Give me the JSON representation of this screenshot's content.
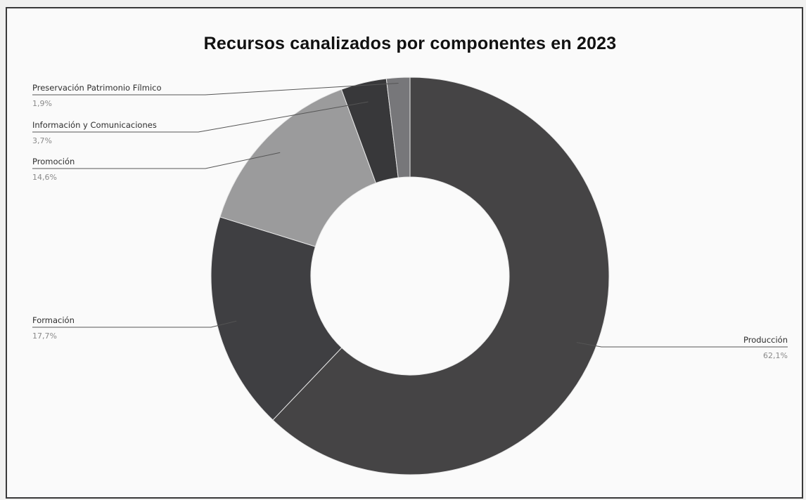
{
  "chart_data": {
    "type": "pie",
    "donut": true,
    "title": "Recursos canalizados por componentes en 2023",
    "slices": [
      {
        "label": "Producción",
        "value": 62.1,
        "display": "62,1%",
        "color": "#454445"
      },
      {
        "label": "Formación",
        "value": 17.7,
        "display": "17,7%",
        "color": "#3f3f42"
      },
      {
        "label": "Promoción",
        "value": 14.6,
        "display": "14,6%",
        "color": "#9b9b9c"
      },
      {
        "label": "Información y Comunicaciones",
        "value": 3.7,
        "display": "3,7%",
        "color": "#38383a"
      },
      {
        "label": "Preservación Patrimonio Fílmico",
        "value": 1.9,
        "display": "1,9%",
        "color": "#77777a"
      }
    ],
    "legend": "none"
  }
}
